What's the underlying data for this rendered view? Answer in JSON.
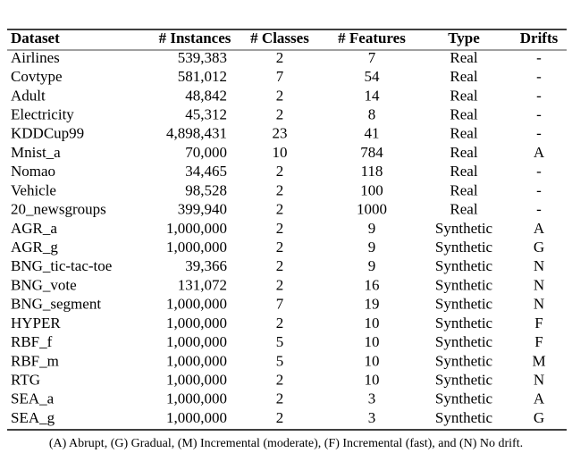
{
  "table": {
    "headers": [
      "Dataset",
      "# Instances",
      "# Classes",
      "# Features",
      "Type",
      "Drifts"
    ],
    "rows": [
      [
        "Airlines",
        "539,383",
        "2",
        "7",
        "Real",
        "-"
      ],
      [
        "Covtype",
        "581,012",
        "7",
        "54",
        "Real",
        "-"
      ],
      [
        "Adult",
        "48,842",
        "2",
        "14",
        "Real",
        "-"
      ],
      [
        "Electricity",
        "45,312",
        "2",
        "8",
        "Real",
        "-"
      ],
      [
        "KDDCup99",
        "4,898,431",
        "23",
        "41",
        "Real",
        "-"
      ],
      [
        "Mnist_a",
        "70,000",
        "10",
        "784",
        "Real",
        "A"
      ],
      [
        "Nomao",
        "34,465",
        "2",
        "118",
        "Real",
        "-"
      ],
      [
        "Vehicle",
        "98,528",
        "2",
        "100",
        "Real",
        "-"
      ],
      [
        "20_newsgroups",
        "399,940",
        "2",
        "1000",
        "Real",
        "-"
      ],
      [
        "AGR_a",
        "1,000,000",
        "2",
        "9",
        "Synthetic",
        "A"
      ],
      [
        "AGR_g",
        "1,000,000",
        "2",
        "9",
        "Synthetic",
        "G"
      ],
      [
        "BNG_tic-tac-toe",
        "39,366",
        "2",
        "9",
        "Synthetic",
        "N"
      ],
      [
        "BNG_vote",
        "131,072",
        "2",
        "16",
        "Synthetic",
        "N"
      ],
      [
        "BNG_segment",
        "1,000,000",
        "7",
        "19",
        "Synthetic",
        "N"
      ],
      [
        "HYPER",
        "1,000,000",
        "2",
        "10",
        "Synthetic",
        "F"
      ],
      [
        "RBF_f",
        "1,000,000",
        "5",
        "10",
        "Synthetic",
        "F"
      ],
      [
        "RBF_m",
        "1,000,000",
        "5",
        "10",
        "Synthetic",
        "M"
      ],
      [
        "RTG",
        "1,000,000",
        "2",
        "10",
        "Synthetic",
        "N"
      ],
      [
        "SEA_a",
        "1,000,000",
        "2",
        "3",
        "Synthetic",
        "A"
      ],
      [
        "SEA_g",
        "1,000,000",
        "2",
        "3",
        "Synthetic",
        "G"
      ]
    ]
  },
  "footnote": "(A) Abrupt, (G) Gradual, (M) Incremental (moderate), (F) Incremental (fast), and (N) No drift."
}
